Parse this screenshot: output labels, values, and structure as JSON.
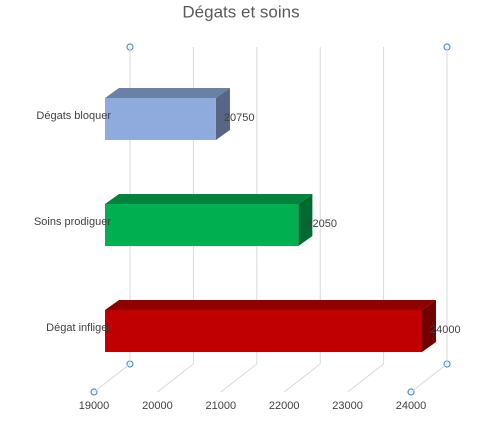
{
  "chart_data": {
    "type": "bar",
    "orientation": "horizontal",
    "title": "Dégats et soins",
    "categories": [
      "Dégats bloquer",
      "Soins prodiguer",
      "Dégat infliger"
    ],
    "values": [
      20750,
      22050,
      24000
    ],
    "colors": [
      "#8faadc",
      "#00b050",
      "#c00000"
    ],
    "xlim": [
      19000,
      24000
    ],
    "xticks": [
      19000,
      20000,
      21000,
      22000,
      23000,
      24000
    ],
    "grid": true
  }
}
